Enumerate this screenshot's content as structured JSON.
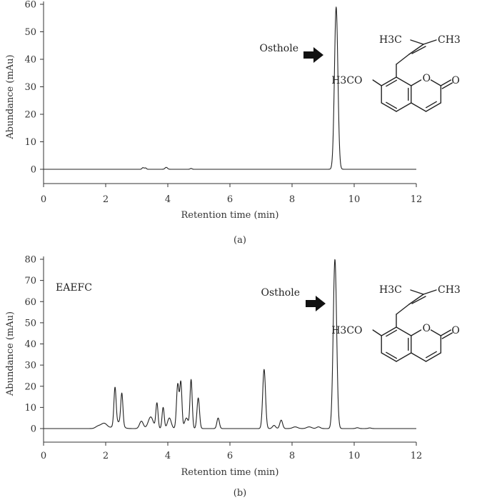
{
  "chart_data": [
    {
      "type": "line",
      "panel": "(a)",
      "title": "",
      "xlabel": "Retention time (min)",
      "ylabel": "Abundance (mAu)",
      "xlim": [
        0,
        12
      ],
      "ylim": [
        -7,
        60
      ],
      "xticks": [
        0,
        2,
        4,
        6,
        8,
        10,
        12
      ],
      "yticks": [
        0,
        10,
        20,
        30,
        40,
        50,
        60
      ],
      "baseline": 0,
      "peaks": [
        {
          "rt": 3.2,
          "height": 0.6,
          "width": 0.03
        },
        {
          "rt": 3.28,
          "height": 0.5,
          "width": 0.03
        },
        {
          "rt": 3.95,
          "height": 0.7,
          "width": 0.04
        },
        {
          "rt": 4.75,
          "height": 0.3,
          "width": 0.03
        },
        {
          "rt": 9.42,
          "height": 59,
          "width": 0.055
        }
      ],
      "annotation": {
        "label": "Osthole",
        "x": 9.42
      },
      "structure": {
        "sub1": "H3C",
        "sub2": "CH3",
        "sub3": "H3CO",
        "ketone": "O",
        "ringO": "O"
      }
    },
    {
      "type": "line",
      "panel": "(b)",
      "title": "",
      "xlabel": "Retention time (min)",
      "ylabel": "Abundance (mAu)",
      "xlim": [
        0,
        12
      ],
      "ylim": [
        -7,
        82
      ],
      "xticks": [
        0,
        2,
        4,
        6,
        8,
        10,
        12
      ],
      "yticks": [
        0,
        10,
        20,
        30,
        40,
        50,
        60,
        70,
        80
      ],
      "baseline": 0,
      "legend_label": "EAEFC",
      "peaks": [
        {
          "rt": 1.75,
          "height": 1.0,
          "width": 0.08
        },
        {
          "rt": 1.95,
          "height": 2.5,
          "width": 0.1
        },
        {
          "rt": 2.3,
          "height": 17.5,
          "width": 0.035
        },
        {
          "rt": 2.52,
          "height": 15.0,
          "width": 0.035
        },
        {
          "rt": 2.4,
          "height": 3.0,
          "width": 0.12
        },
        {
          "rt": 3.15,
          "height": 3.5,
          "width": 0.06
        },
        {
          "rt": 3.45,
          "height": 5.5,
          "width": 0.08
        },
        {
          "rt": 3.65,
          "height": 12.0,
          "width": 0.035
        },
        {
          "rt": 3.85,
          "height": 10.0,
          "width": 0.035
        },
        {
          "rt": 4.05,
          "height": 5.0,
          "width": 0.06
        },
        {
          "rt": 4.32,
          "height": 21.0,
          "width": 0.04
        },
        {
          "rt": 4.42,
          "height": 21.5,
          "width": 0.035
        },
        {
          "rt": 4.6,
          "height": 5.0,
          "width": 0.06
        },
        {
          "rt": 4.75,
          "height": 23.0,
          "width": 0.035
        },
        {
          "rt": 4.98,
          "height": 14.5,
          "width": 0.04
        },
        {
          "rt": 5.62,
          "height": 5.0,
          "width": 0.04
        },
        {
          "rt": 7.1,
          "height": 28.0,
          "width": 0.045
        },
        {
          "rt": 7.42,
          "height": 1.5,
          "width": 0.05
        },
        {
          "rt": 7.65,
          "height": 4.0,
          "width": 0.045
        },
        {
          "rt": 8.1,
          "height": 0.8,
          "width": 0.08
        },
        {
          "rt": 8.55,
          "height": 0.8,
          "width": 0.08
        },
        {
          "rt": 8.85,
          "height": 0.8,
          "width": 0.06
        },
        {
          "rt": 9.38,
          "height": 80.0,
          "width": 0.055
        },
        {
          "rt": 10.1,
          "height": 0.4,
          "width": 0.05
        },
        {
          "rt": 10.5,
          "height": 0.3,
          "width": 0.05
        }
      ],
      "annotation": {
        "label": "Osthole",
        "x": 9.38
      },
      "structure": {
        "sub1": "H3C",
        "sub2": "CH3",
        "sub3": "H3CO",
        "ketone": "O",
        "ringO": "O"
      }
    }
  ],
  "captions": {
    "a": "(a)",
    "b": "(b)"
  }
}
